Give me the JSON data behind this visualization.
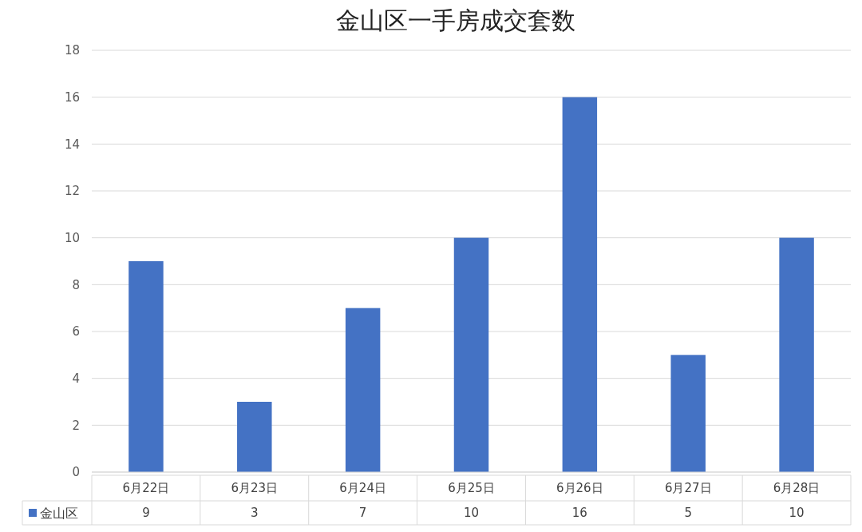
{
  "chart_data": {
    "type": "bar",
    "title": "金山区一手房成交套数",
    "categories": [
      "6月22日",
      "6月23日",
      "6月24日",
      "6月25日",
      "6月26日",
      "6月27日",
      "6月28日"
    ],
    "series": [
      {
        "name": "金山区",
        "color": "#4472c4",
        "values": [
          9,
          3,
          7,
          10,
          16,
          5,
          10
        ]
      }
    ],
    "ylim": [
      0,
      18
    ],
    "yticks": [
      0,
      2,
      4,
      6,
      8,
      10,
      12,
      14,
      16,
      18
    ],
    "grid": "y",
    "legend": "bottom",
    "data_labels": true
  }
}
